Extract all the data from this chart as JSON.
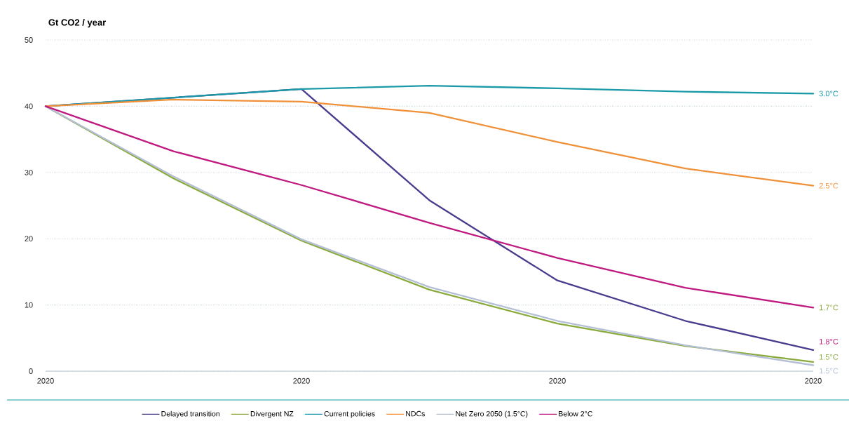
{
  "chart_data": {
    "type": "line",
    "ylabel": "Gt CO2 / year",
    "categories": [
      "2020",
      null,
      "2020",
      null,
      "2020",
      null,
      "2020"
    ],
    "ylim": [
      0,
      50
    ],
    "yticks": [
      0,
      10,
      20,
      30,
      40,
      50
    ],
    "grid": "y",
    "legend": "bottom",
    "marker": "none",
    "line_style": "solid",
    "series": [
      {
        "name": "Delayed transition",
        "color": "#4b3b8f",
        "values": [
          40,
          41.3,
          42.6,
          25.8,
          13.7,
          7.6,
          3.2
        ]
      },
      {
        "name": "Divergent NZ",
        "color": "#8aab3c",
        "values": [
          40,
          29.1,
          19.7,
          12.3,
          7.2,
          3.8,
          1.4
        ]
      },
      {
        "name": "Current policies",
        "color": "#1a9aa8",
        "values": [
          40,
          41.3,
          42.6,
          43.1,
          42.7,
          42.2,
          41.9
        ]
      },
      {
        "name": "NDCs",
        "color": "#f0913a",
        "values": [
          40,
          41.0,
          40.7,
          39.0,
          34.6,
          30.6,
          28.0
        ]
      },
      {
        "name": "Net Zero 2050 (1.5°C)",
        "color": "#b4bfd6",
        "values": [
          40,
          29.4,
          19.9,
          12.7,
          7.6,
          3.9,
          0.9
        ]
      },
      {
        "name": "Below 2°C",
        "color": "#c0197f",
        "values": [
          40,
          33.2,
          28.1,
          22.4,
          17.1,
          12.6,
          9.6
        ]
      }
    ],
    "annotations": [
      "3.0°C",
      "2.5°C",
      "1.7°C",
      "1.8°C",
      "1.5°C",
      "1.5°C"
    ]
  }
}
